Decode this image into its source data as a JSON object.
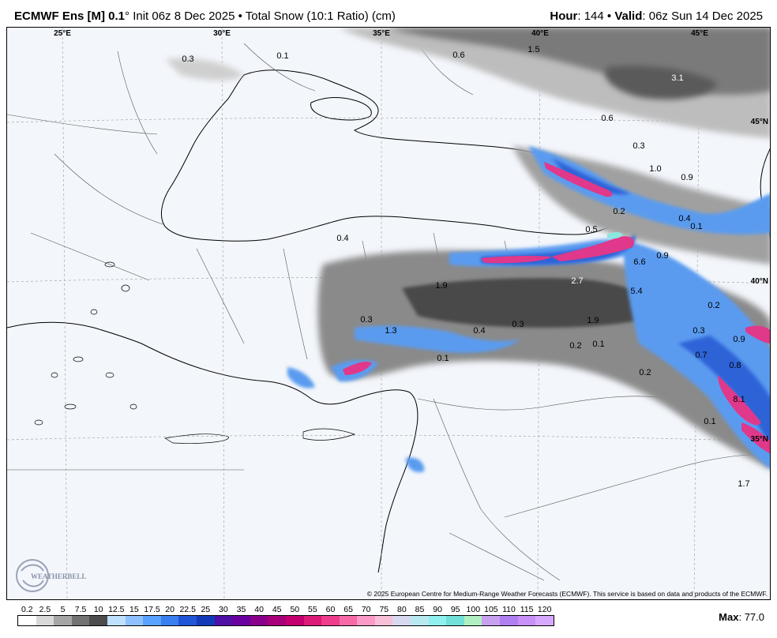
{
  "header": {
    "model": "ECMWF Ens [M] 0.1",
    "degree": "°",
    "init": "Init 06z 8 Dec 2025",
    "bullet": "•",
    "product": "Total Snow (10:1 Ratio) (cm)",
    "hour_label": "Hour",
    "hour_value": ": 144",
    "valid_label": "Valid",
    "valid_value": ": 06z Sun 14 Dec 2025"
  },
  "map": {
    "lon_labels": [
      "25°E",
      "30°E",
      "35°E",
      "40°E",
      "45°E"
    ],
    "lat_labels": [
      "45°N",
      "40°N",
      "35°N"
    ],
    "snow_values": [
      {
        "text": "0.3",
        "light": false
      },
      {
        "text": "0.1",
        "light": false
      },
      {
        "text": "0.6",
        "light": false
      },
      {
        "text": "1.5",
        "light": false
      },
      {
        "text": "3.1",
        "light": true
      },
      {
        "text": "0.6",
        "light": false
      },
      {
        "text": "0.3",
        "light": false
      },
      {
        "text": "1.0",
        "light": false
      },
      {
        "text": "0.9",
        "light": false
      },
      {
        "text": "0.2",
        "light": false
      },
      {
        "text": "0.4",
        "light": false
      },
      {
        "text": "0.1",
        "light": false
      },
      {
        "text": "0.5",
        "light": false
      },
      {
        "text": "0.4",
        "light": false
      },
      {
        "text": "6.6",
        "light": false
      },
      {
        "text": "0.9",
        "light": false
      },
      {
        "text": "2.7",
        "light": true
      },
      {
        "text": "1.9",
        "light": false
      },
      {
        "text": "5.4",
        "light": false
      },
      {
        "text": "0.2",
        "light": false
      },
      {
        "text": "0.3",
        "light": false
      },
      {
        "text": "1.3",
        "light": false
      },
      {
        "text": "0.4",
        "light": false
      },
      {
        "text": "0.3",
        "light": false
      },
      {
        "text": "1.9",
        "light": false
      },
      {
        "text": "0.3",
        "light": false
      },
      {
        "text": "0.9",
        "light": false
      },
      {
        "text": "0.2",
        "light": false
      },
      {
        "text": "0.1",
        "light": false
      },
      {
        "text": "0.1",
        "light": false
      },
      {
        "text": "0.7",
        "light": false
      },
      {
        "text": "0.8",
        "light": false
      },
      {
        "text": "0.2",
        "light": false
      },
      {
        "text": "8.1",
        "light": false
      },
      {
        "text": "0.1",
        "light": false
      },
      {
        "text": "1.7",
        "light": false
      }
    ]
  },
  "footer": {
    "copyright": "© 2025 European Centre for Medium-Range Weather Forecasts (ECMWF). This service is based on data and products of the ECMWF.",
    "scale_values": [
      "0.2",
      "2.5",
      "5",
      "7.5",
      "10",
      "12.5",
      "15",
      "17.5",
      "20",
      "22.5",
      "25",
      "30",
      "35",
      "40",
      "45",
      "50",
      "55",
      "60",
      "65",
      "70",
      "75",
      "80",
      "85",
      "90",
      "95",
      "100",
      "105",
      "110",
      "115",
      "120"
    ],
    "scale_colors": [
      "#ffffff",
      "#d9d9d9",
      "#a6a6a6",
      "#737373",
      "#4d4d4d",
      "#bfe0ff",
      "#8ec1ff",
      "#5aa2ff",
      "#3a7ff0",
      "#2055d8",
      "#123ab8",
      "#4d0fa6",
      "#6a00a0",
      "#8a008a",
      "#a8007a",
      "#c40070",
      "#dc1a78",
      "#ee3d8c",
      "#f76aa8",
      "#fb9ac6",
      "#f8c0d8",
      "#d8d8f0",
      "#b8e8f0",
      "#90f0f0",
      "#70e0d8",
      "#b0f0c0",
      "#c8a0f0",
      "#b080f0",
      "#c890f8",
      "#d8a8ff"
    ],
    "max_label": "Max",
    "max_value": ": 77.0"
  }
}
